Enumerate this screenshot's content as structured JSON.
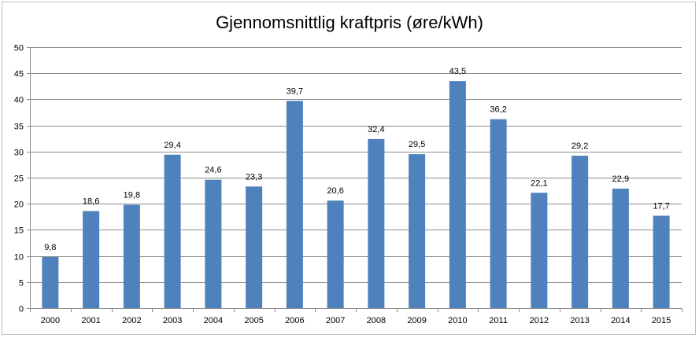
{
  "chart_data": {
    "type": "bar",
    "title": "Gjennomsnittlig kraftpris (øre/kWh)",
    "categories": [
      "2000",
      "2001",
      "2002",
      "2003",
      "2004",
      "2005",
      "2006",
      "2007",
      "2008",
      "2009",
      "2010",
      "2011",
      "2012",
      "2013",
      "2014",
      "2015"
    ],
    "values": [
      9.8,
      18.6,
      19.8,
      29.4,
      24.6,
      23.3,
      39.7,
      20.6,
      32.4,
      29.5,
      43.5,
      36.2,
      22.1,
      29.2,
      22.9,
      17.7
    ],
    "data_labels": [
      "9,8",
      "18,6",
      "19,8",
      "29,4",
      "24,6",
      "23,3",
      "39,7",
      "20,6",
      "32,4",
      "29,5",
      "43,5",
      "36,2",
      "22,1",
      "29,2",
      "22,9",
      "17,7"
    ],
    "xlabel": "",
    "ylabel": "",
    "ylim": [
      0,
      50
    ],
    "yticks": [
      "0",
      "5",
      "10",
      "15",
      "20",
      "25",
      "30",
      "35",
      "40",
      "45",
      "50"
    ],
    "grid": true,
    "legend": "none",
    "bar_color": "#4f81bd"
  }
}
